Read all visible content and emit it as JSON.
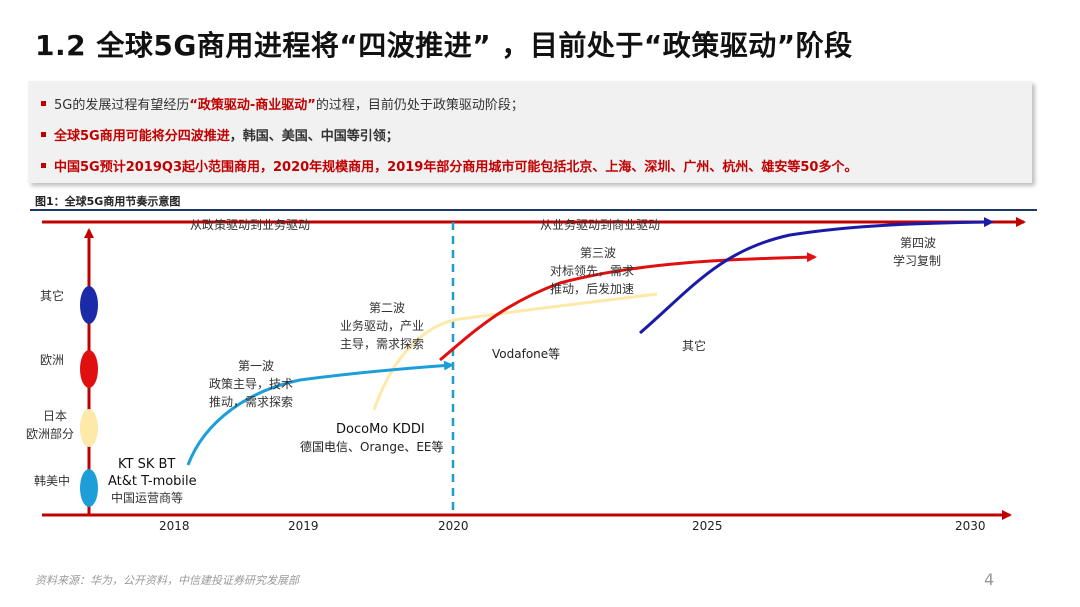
{
  "title": "1.2  全球5G商用进程将“四波推进” ，目前处于“政策驱动”阶段",
  "bullets": {
    "b1_text": "5G的发展过程有望经历",
    "b1_red": "“政策驱动-商业驱动”",
    "b1_tail": "的过程，目前仍处于政策驱动阶段；",
    "b2_red": "全球5G商用可能将分四波推进",
    "b2_tail": "，韩国、美国、中国等引领；",
    "b3": "中国5G预计2019Q3起小范围商用，2020年规模商用，2019年部分商用城市可能包括北京、上海、深圳、广州、杭州、雄安等50多个。"
  },
  "figure_caption": "图1：全球5G商用节奏示意图",
  "diagram": {
    "top_left_phase": "从政策驱动到业务驱动",
    "top_right_phase": "从业务驱动到商业驱动",
    "years": [
      "2018",
      "2019",
      "2020",
      "2025",
      "2030"
    ],
    "regions": [
      "其它",
      "欧洲",
      "日本",
      "欧洲部分",
      "韩美中"
    ],
    "wave1_title": "第一波",
    "wave1_l1": "政策主导，技术",
    "wave1_l2": "推动，需求探索",
    "wave2_title": "第二波",
    "wave2_l1": "业务驱动，产业",
    "wave2_l2": "主导，需求探索",
    "wave3_title": "第三波",
    "wave3_l1": "对标领先，需求",
    "wave3_l2": "推动，后发加速",
    "wave4_title": "第四波",
    "wave4_l1": "学习复制",
    "w1_ops_1": "KT  SK BT",
    "w1_ops_2": "At&t T-mobile",
    "w1_ops_3": "中国运营商等",
    "w2_ops_1": "DocoMo  KDDI",
    "w2_ops_2": "德国电信、Orange、EE等",
    "w3_ops": "Vodafone等",
    "w4_ops": "其它"
  },
  "colors": {
    "accent_red": "#c00000",
    "axis_red": "#c00000",
    "navy": "#1f3864",
    "wave1_blue": "#1e9ed8",
    "wave2_yellow": "#fde9a8",
    "wave3_red": "#e01010",
    "wave4_navy": "#1a1aa8",
    "dash_cyan": "#1ba0c8"
  },
  "source": "资料来源：华为，公开资料，中信建投证券研究发展部",
  "page_number": "4"
}
